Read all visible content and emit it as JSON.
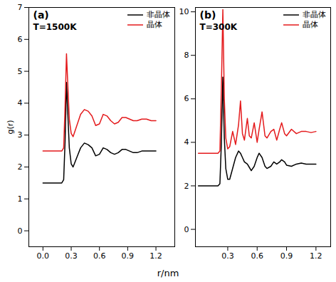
{
  "chart_data": [
    {
      "type": "line",
      "annotations": [
        "(a)",
        "T=1500K"
      ],
      "x_label": "r/nm",
      "y_label": "g(r)",
      "legend": "upper right",
      "x": [
        0,
        0.2,
        0.22,
        0.235,
        0.25,
        0.265,
        0.28,
        0.3,
        0.32,
        0.36,
        0.4,
        0.44,
        0.48,
        0.52,
        0.56,
        0.6,
        0.64,
        0.68,
        0.72,
        0.76,
        0.8,
        0.84,
        0.88,
        0.92,
        0.96,
        1.0,
        1.05,
        1.1,
        1.15,
        1.2
      ],
      "series": [
        {
          "name": "非晶体",
          "color": "#000000",
          "values": [
            1.5,
            1.5,
            1.6,
            2.8,
            4.65,
            3.6,
            2.6,
            2.1,
            2.0,
            2.3,
            2.6,
            2.75,
            2.7,
            2.6,
            2.35,
            2.4,
            2.6,
            2.55,
            2.45,
            2.4,
            2.45,
            2.55,
            2.55,
            2.5,
            2.45,
            2.45,
            2.5,
            2.5,
            2.5,
            2.5
          ]
        },
        {
          "name": "晶体",
          "color": "#e41a1c",
          "values": [
            2.5,
            2.5,
            2.6,
            3.9,
            5.55,
            4.5,
            3.5,
            3.05,
            2.95,
            3.3,
            3.65,
            3.8,
            3.75,
            3.6,
            3.3,
            3.35,
            3.65,
            3.6,
            3.45,
            3.35,
            3.4,
            3.55,
            3.55,
            3.5,
            3.45,
            3.45,
            3.5,
            3.5,
            3.45,
            3.45
          ]
        }
      ],
      "xlim": [
        -0.15,
        1.4
      ],
      "xticks": [
        {
          "value": 0,
          "label": "0.0"
        },
        0.3,
        0.6,
        0.9,
        1.2
      ],
      "ylim": [
        -0.5,
        7
      ],
      "yticks": [
        0,
        1,
        2,
        3,
        4,
        5,
        6,
        7
      ]
    },
    {
      "type": "line",
      "annotations": [
        "(b)",
        "T=300K"
      ],
      "legend": "upper right",
      "x": [
        0,
        0.2,
        0.22,
        0.235,
        0.25,
        0.265,
        0.28,
        0.3,
        0.32,
        0.35,
        0.38,
        0.41,
        0.43,
        0.45,
        0.47,
        0.5,
        0.52,
        0.54,
        0.57,
        0.6,
        0.62,
        0.65,
        0.68,
        0.7,
        0.74,
        0.77,
        0.8,
        0.83,
        0.85,
        0.88,
        0.9,
        0.95,
        1.0,
        1.05,
        1.1,
        1.15,
        1.2
      ],
      "series": [
        {
          "name": "非晶体",
          "color": "#000000",
          "values": [
            2,
            2,
            2.1,
            4,
            7.0,
            4.2,
            2.8,
            2.3,
            2.3,
            2.8,
            3.3,
            3.6,
            3.5,
            3.3,
            3.1,
            3.0,
            2.85,
            2.7,
            2.9,
            3.3,
            3.5,
            3.3,
            2.9,
            2.8,
            2.9,
            3.1,
            3.0,
            3.1,
            3.2,
            3.1,
            2.95,
            2.9,
            3.0,
            3.05,
            3.0,
            3.0,
            3.0
          ]
        },
        {
          "name": "晶体",
          "color": "#e41a1c",
          "values": [
            3.5,
            3.5,
            3.6,
            6.5,
            10.1,
            6.0,
            4.2,
            3.7,
            3.8,
            4.5,
            3.9,
            4.8,
            5.9,
            4.4,
            4.1,
            5.1,
            4.3,
            4.2,
            4.9,
            4.0,
            4.6,
            5.4,
            4.3,
            4.2,
            4.5,
            4.6,
            4.1,
            4.6,
            4.9,
            4.4,
            4.3,
            4.6,
            4.4,
            4.5,
            4.5,
            4.45,
            4.5
          ]
        }
      ],
      "xlim": [
        -0.03,
        1.35
      ],
      "xticks": [
        0.3,
        0.6,
        0.9,
        1.2
      ],
      "ylim": [
        -0.8,
        10.2
      ],
      "yticks": [
        0,
        2,
        4,
        6,
        8,
        10
      ]
    }
  ]
}
